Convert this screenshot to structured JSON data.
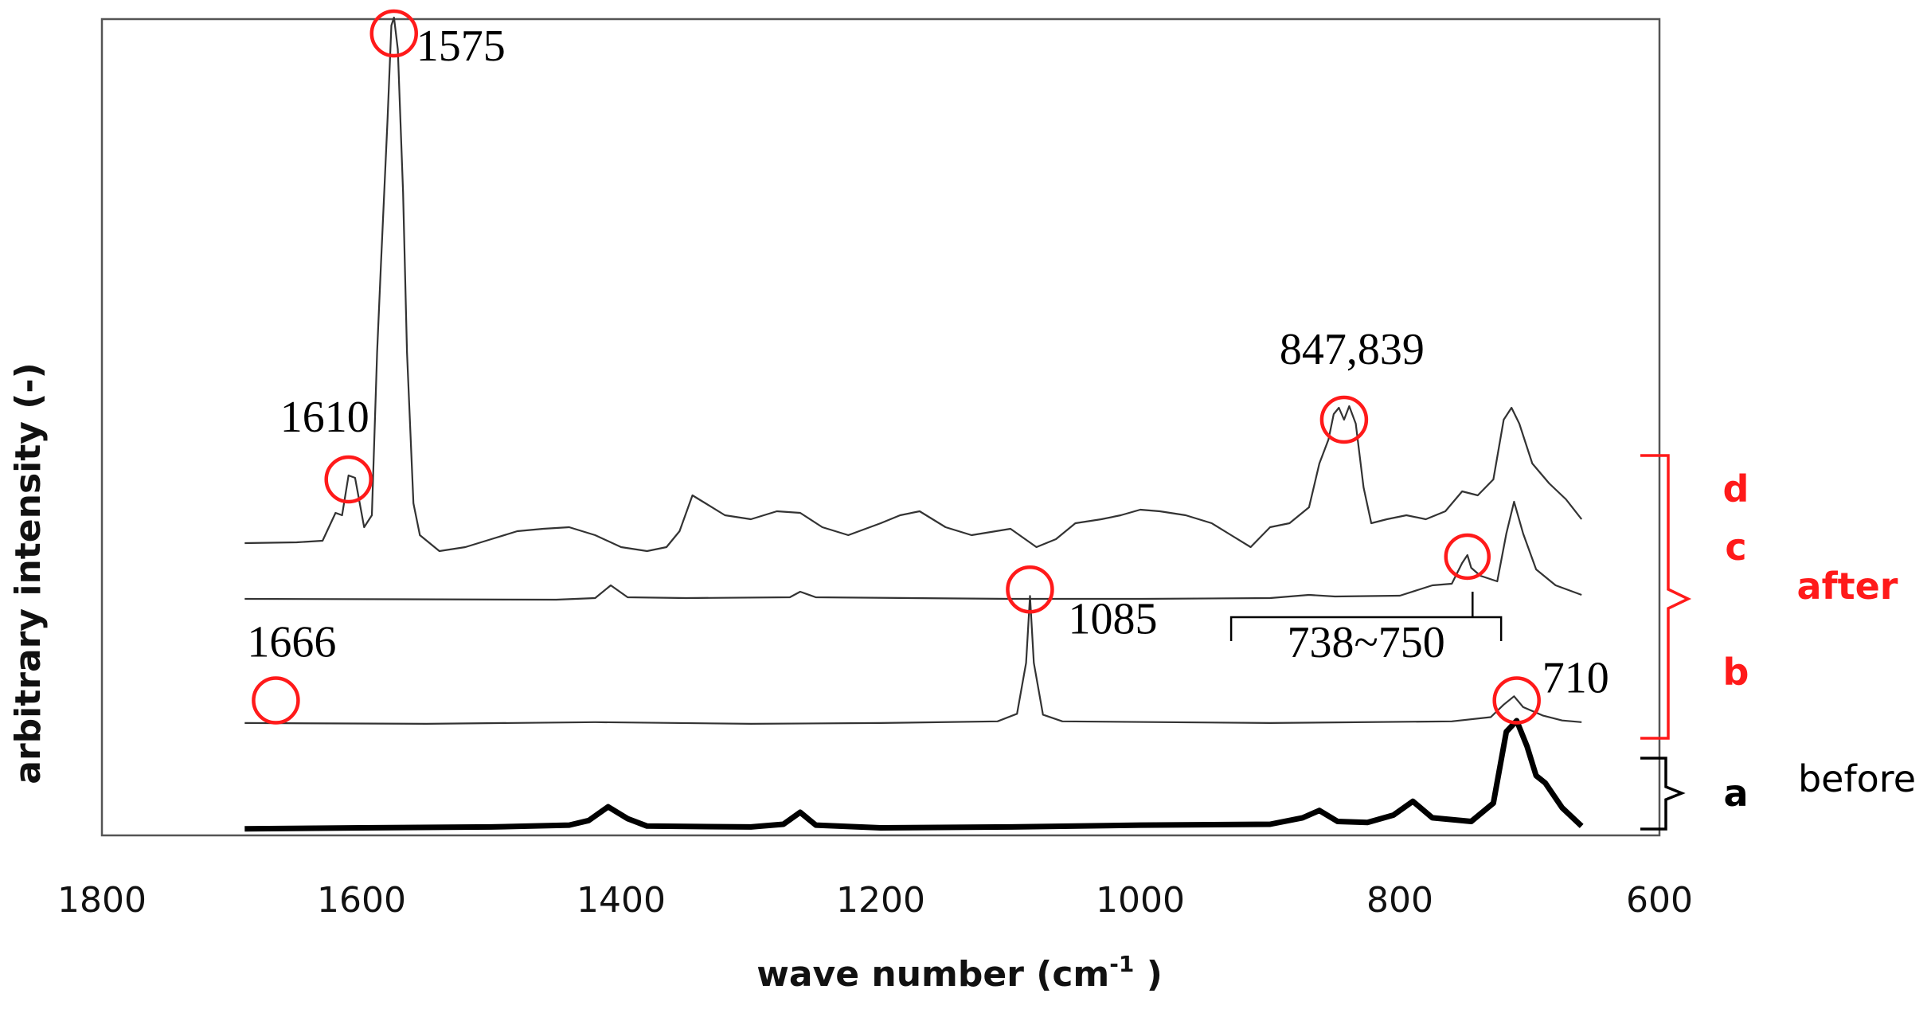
{
  "chart_data": {
    "type": "line",
    "xlabel": "wave number (cm",
    "xlabel_sup": "-1",
    "xlabel_close": " )",
    "ylabel": "arbitrary  intensity (-)",
    "xlim": [
      1800,
      600
    ],
    "x_reversed": true,
    "x_ticks": [
      "1800",
      "1600",
      "1400",
      "1200",
      "1000",
      "800",
      "600"
    ],
    "grid": false,
    "legend": "none",
    "series": [
      {
        "key": "a",
        "line_width": "thick",
        "color": "#000000",
        "points": [
          [
            1690,
            0.02
          ],
          [
            1600,
            0.03
          ],
          [
            1500,
            0.04
          ],
          [
            1440,
            0.06
          ],
          [
            1425,
            0.11
          ],
          [
            1410,
            0.26
          ],
          [
            1395,
            0.13
          ],
          [
            1380,
            0.05
          ],
          [
            1300,
            0.04
          ],
          [
            1275,
            0.07
          ],
          [
            1262,
            0.2
          ],
          [
            1250,
            0.06
          ],
          [
            1200,
            0.03
          ],
          [
            1100,
            0.04
          ],
          [
            1000,
            0.06
          ],
          [
            900,
            0.07
          ],
          [
            875,
            0.14
          ],
          [
            862,
            0.22
          ],
          [
            848,
            0.1
          ],
          [
            825,
            0.09
          ],
          [
            805,
            0.17
          ],
          [
            790,
            0.32
          ],
          [
            775,
            0.14
          ],
          [
            745,
            0.1
          ],
          [
            728,
            0.3
          ],
          [
            718,
            1.08
          ],
          [
            710,
            1.2
          ],
          [
            702,
            0.92
          ],
          [
            695,
            0.6
          ],
          [
            688,
            0.52
          ],
          [
            675,
            0.25
          ],
          [
            660,
            0.05
          ]
        ]
      },
      {
        "key": "b",
        "line_width": "thin",
        "color": "#333333",
        "points": [
          [
            1690,
            0.03
          ],
          [
            1550,
            0.02
          ],
          [
            1420,
            0.04
          ],
          [
            1300,
            0.02
          ],
          [
            1200,
            0.03
          ],
          [
            1110,
            0.05
          ],
          [
            1095,
            0.14
          ],
          [
            1088,
            0.75
          ],
          [
            1085,
            1.55
          ],
          [
            1082,
            0.75
          ],
          [
            1075,
            0.13
          ],
          [
            1060,
            0.05
          ],
          [
            900,
            0.03
          ],
          [
            760,
            0.05
          ],
          [
            730,
            0.1
          ],
          [
            720,
            0.25
          ],
          [
            712,
            0.35
          ],
          [
            705,
            0.22
          ],
          [
            690,
            0.12
          ],
          [
            675,
            0.06
          ],
          [
            660,
            0.04
          ]
        ]
      },
      {
        "key": "c",
        "line_width": "thin",
        "color": "#333333",
        "points": [
          [
            1690,
            0.03
          ],
          [
            1450,
            0.02
          ],
          [
            1420,
            0.04
          ],
          [
            1408,
            0.2
          ],
          [
            1395,
            0.05
          ],
          [
            1350,
            0.04
          ],
          [
            1270,
            0.05
          ],
          [
            1262,
            0.12
          ],
          [
            1250,
            0.05
          ],
          [
            1100,
            0.03
          ],
          [
            1000,
            0.03
          ],
          [
            900,
            0.04
          ],
          [
            870,
            0.08
          ],
          [
            850,
            0.06
          ],
          [
            800,
            0.07
          ],
          [
            775,
            0.2
          ],
          [
            760,
            0.22
          ],
          [
            752,
            0.48
          ],
          [
            748,
            0.58
          ],
          [
            745,
            0.42
          ],
          [
            738,
            0.32
          ],
          [
            725,
            0.25
          ],
          [
            718,
            0.85
          ],
          [
            712,
            1.25
          ],
          [
            705,
            0.85
          ],
          [
            695,
            0.4
          ],
          [
            680,
            0.2
          ],
          [
            660,
            0.08
          ]
        ]
      },
      {
        "key": "d",
        "line_width": "thin",
        "color": "#333333",
        "points": [
          [
            1690,
            0.1
          ],
          [
            1650,
            0.11
          ],
          [
            1630,
            0.13
          ],
          [
            1620,
            0.48
          ],
          [
            1615,
            0.45
          ],
          [
            1610,
            0.95
          ],
          [
            1605,
            0.92
          ],
          [
            1598,
            0.3
          ],
          [
            1592,
            0.45
          ],
          [
            1588,
            2.5
          ],
          [
            1585,
            3.6
          ],
          [
            1580,
            5.4
          ],
          [
            1577,
            6.6
          ],
          [
            1575,
            6.7
          ],
          [
            1572,
            6.3
          ],
          [
            1568,
            4.5
          ],
          [
            1565,
            2.5
          ],
          [
            1560,
            0.6
          ],
          [
            1555,
            0.2
          ],
          [
            1540,
            0.0
          ],
          [
            1520,
            0.05
          ],
          [
            1500,
            0.15
          ],
          [
            1480,
            0.25
          ],
          [
            1460,
            0.28
          ],
          [
            1440,
            0.3
          ],
          [
            1420,
            0.2
          ],
          [
            1400,
            0.05
          ],
          [
            1380,
            0.0
          ],
          [
            1365,
            0.05
          ],
          [
            1355,
            0.25
          ],
          [
            1345,
            0.7
          ],
          [
            1335,
            0.6
          ],
          [
            1320,
            0.45
          ],
          [
            1300,
            0.4
          ],
          [
            1280,
            0.5
          ],
          [
            1262,
            0.48
          ],
          [
            1245,
            0.3
          ],
          [
            1225,
            0.2
          ],
          [
            1200,
            0.35
          ],
          [
            1185,
            0.45
          ],
          [
            1170,
            0.5
          ],
          [
            1150,
            0.3
          ],
          [
            1130,
            0.2
          ],
          [
            1100,
            0.28
          ],
          [
            1080,
            0.05
          ],
          [
            1065,
            0.15
          ],
          [
            1050,
            0.35
          ],
          [
            1030,
            0.4
          ],
          [
            1015,
            0.45
          ],
          [
            1000,
            0.52
          ],
          [
            985,
            0.5
          ],
          [
            965,
            0.45
          ],
          [
            945,
            0.35
          ],
          [
            930,
            0.2
          ],
          [
            915,
            0.05
          ],
          [
            900,
            0.3
          ],
          [
            885,
            0.35
          ],
          [
            870,
            0.55
          ],
          [
            862,
            1.1
          ],
          [
            855,
            1.4
          ],
          [
            851,
            1.72
          ],
          [
            847,
            1.8
          ],
          [
            843,
            1.65
          ],
          [
            839,
            1.82
          ],
          [
            834,
            1.6
          ],
          [
            828,
            0.8
          ],
          [
            822,
            0.35
          ],
          [
            810,
            0.4
          ],
          [
            795,
            0.45
          ],
          [
            780,
            0.4
          ],
          [
            765,
            0.5
          ],
          [
            752,
            0.75
          ],
          [
            740,
            0.7
          ],
          [
            728,
            0.9
          ],
          [
            720,
            1.65
          ],
          [
            714,
            1.8
          ],
          [
            708,
            1.6
          ],
          [
            698,
            1.1
          ],
          [
            685,
            0.85
          ],
          [
            672,
            0.65
          ],
          [
            660,
            0.4
          ]
        ]
      }
    ],
    "annotations": [
      {
        "text": "1575",
        "x": 1575,
        "series": "d"
      },
      {
        "text": "1610",
        "x": 1610,
        "series": "d"
      },
      {
        "text": "847,839",
        "x": 843,
        "series": "d"
      },
      {
        "text": "738~750",
        "x": 744,
        "series": "c"
      },
      {
        "text": "1085",
        "x": 1085,
        "series": "b"
      },
      {
        "text": "1666",
        "x": 1666,
        "series": "b"
      },
      {
        "text": "710",
        "x": 710,
        "series": "b"
      }
    ],
    "group_labels": {
      "d": "d",
      "c": "c",
      "b": "b",
      "a": "a",
      "after": "after",
      "before": "before"
    },
    "colors": {
      "highlight": "#ff1a1a",
      "after": "#ff1a1a",
      "before": "#000000"
    }
  }
}
